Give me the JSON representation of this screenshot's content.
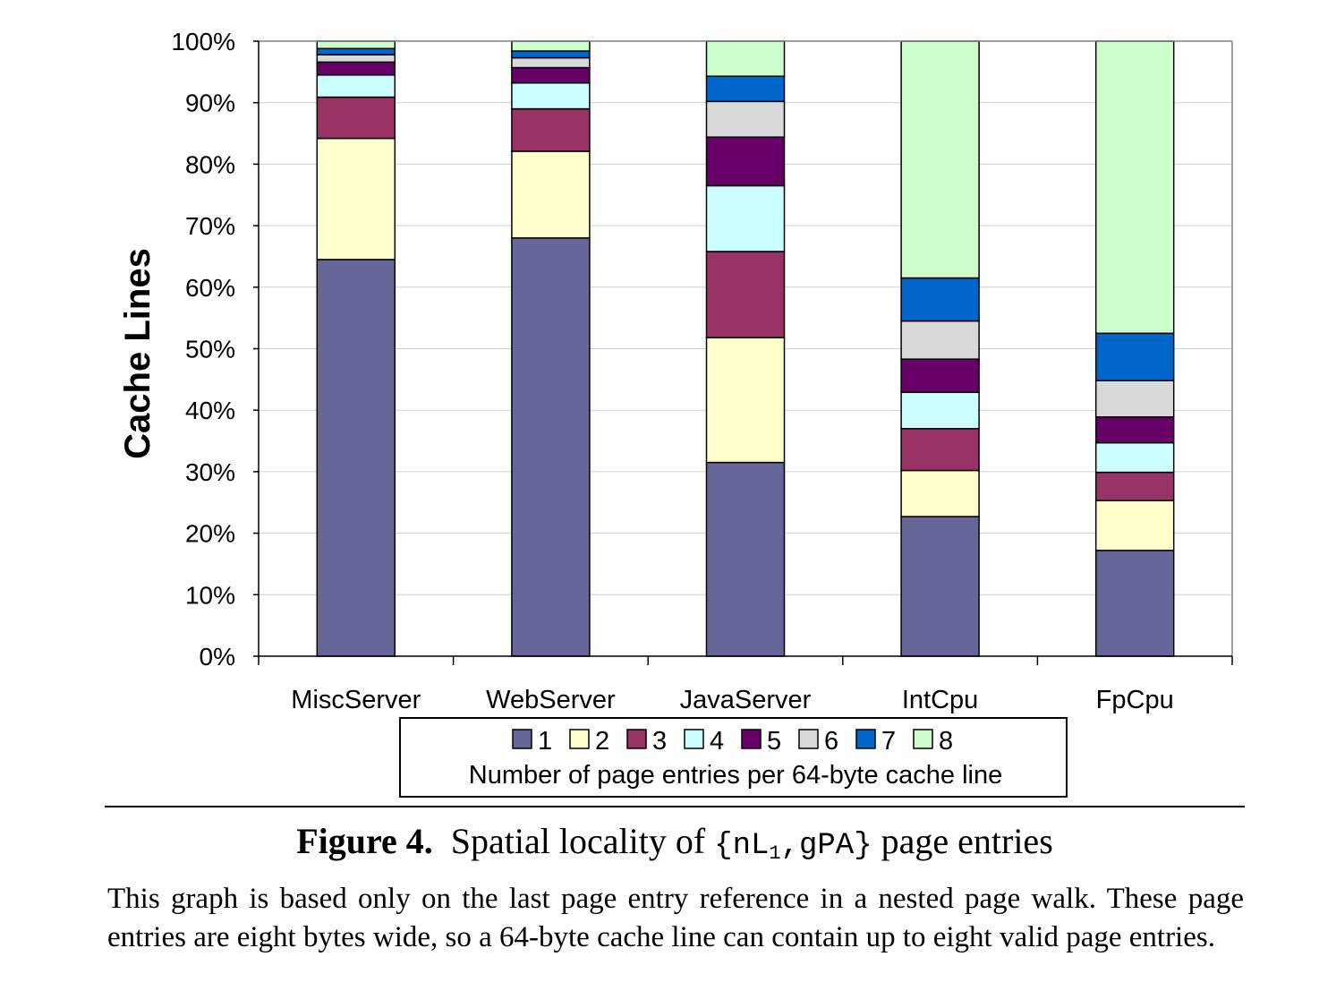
{
  "chart_data": {
    "type": "stacked-bar-100",
    "categories": [
      "MiscServer",
      "WebServer",
      "JavaServer",
      "IntCpu",
      "FpCpu"
    ],
    "ylabel": "Cache Lines",
    "ylim": [
      0,
      100
    ],
    "yticks": [
      "0%",
      "10%",
      "20%",
      "30%",
      "40%",
      "50%",
      "60%",
      "70%",
      "80%",
      "90%",
      "100%"
    ],
    "legend_title": "Number of page entries per 64-byte cache line",
    "legend_position": "bottom",
    "grid": true,
    "series": [
      {
        "name": "1",
        "color": "#666699",
        "values": [
          64.5,
          68.0,
          31.5,
          22.7,
          17.2
        ]
      },
      {
        "name": "2",
        "color": "#ffffcc",
        "values": [
          19.7,
          14.1,
          20.3,
          7.5,
          8.1
        ]
      },
      {
        "name": "3",
        "color": "#993366",
        "values": [
          6.7,
          6.9,
          14.0,
          6.8,
          4.6
        ]
      },
      {
        "name": "4",
        "color": "#ccffff",
        "values": [
          3.6,
          4.2,
          10.7,
          5.9,
          4.8
        ]
      },
      {
        "name": "5",
        "color": "#660066",
        "values": [
          2.1,
          2.5,
          7.9,
          5.4,
          4.2
        ]
      },
      {
        "name": "6",
        "color": "#d9d9d9",
        "values": [
          1.2,
          1.6,
          5.8,
          6.2,
          5.9
        ]
      },
      {
        "name": "7",
        "color": "#0066cc",
        "values": [
          1.0,
          1.1,
          4.1,
          7.0,
          7.7
        ]
      },
      {
        "name": "8",
        "color": "#ccffcc",
        "values": [
          1.2,
          1.6,
          5.7,
          38.5,
          47.5
        ]
      }
    ]
  },
  "caption": {
    "figure_label": "Figure 4.",
    "title_prefix": "Spatial locality of ",
    "title_code": "{nL",
    "title_sub": "1",
    "title_code2": ",gPA}",
    "title_suffix": " page entries",
    "body": "This graph is based only on the last page entry reference in a nested page walk. These page entries are eight bytes wide, so a 64-byte cache line can contain up to eight valid page entries."
  }
}
